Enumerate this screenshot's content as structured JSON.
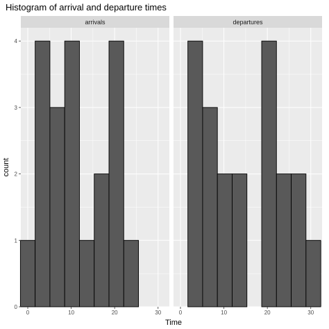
{
  "chart_data": {
    "type": "bar",
    "title": "Histogram of arrival and departure times",
    "xlabel": "Time",
    "ylabel": "count",
    "xlim": [
      -1.6,
      32.6
    ],
    "ylim": [
      0,
      4.2
    ],
    "x_ticks": [
      0,
      10,
      20,
      30
    ],
    "y_ticks": [
      0,
      1,
      2,
      3,
      4
    ],
    "bin_width": 3.4,
    "bin_centers": [
      0,
      3.4,
      6.8,
      10.2,
      13.6,
      17.0,
      20.4,
      23.8,
      27.2,
      30.6
    ],
    "panel_background": "#ebebeb",
    "strip_background": "#d9d9d9",
    "bar_fill": "#595959",
    "bar_outline": "#000000",
    "facets": [
      {
        "name": "arrivals",
        "values": [
          1,
          4,
          3,
          4,
          1,
          2,
          4,
          1,
          0,
          0
        ]
      },
      {
        "name": "departures",
        "values": [
          0,
          4,
          3,
          2,
          2,
          0,
          4,
          2,
          2,
          1
        ]
      }
    ]
  }
}
